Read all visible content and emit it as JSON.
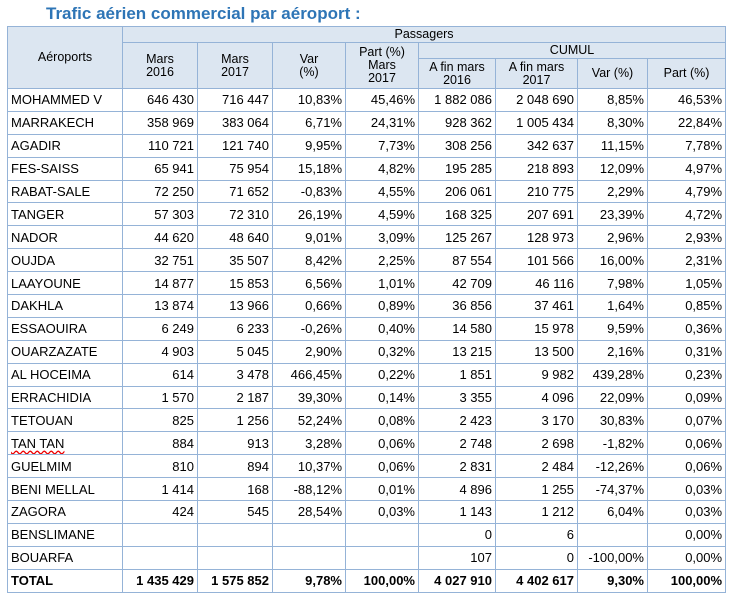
{
  "title": "Trafic aérien commercial par aéroport :",
  "table": {
    "header": {
      "airports": "Aéroports",
      "passengers": "Passagers",
      "cumul": "CUMUL",
      "columns": [
        "Mars\n2016",
        "Mars\n2017",
        "Var\n(%)",
        "Part (%)\nMars\n2017",
        "A fin mars\n2016",
        "A fin mars\n2017",
        "Var (%)",
        "Part (%)"
      ]
    },
    "rows": [
      [
        "MOHAMMED V",
        "646 430",
        "716 447",
        "10,83%",
        "45,46%",
        "1 882 086",
        "2 048 690",
        "8,85%",
        "46,53%"
      ],
      [
        "MARRAKECH",
        "358 969",
        "383 064",
        "6,71%",
        "24,31%",
        "928 362",
        "1 005 434",
        "8,30%",
        "22,84%"
      ],
      [
        "AGADIR",
        "110 721",
        "121 740",
        "9,95%",
        "7,73%",
        "308 256",
        "342 637",
        "11,15%",
        "7,78%"
      ],
      [
        "FES-SAISS",
        "65 941",
        "75 954",
        "15,18%",
        "4,82%",
        "195 285",
        "218 893",
        "12,09%",
        "4,97%"
      ],
      [
        "RABAT-SALE",
        "72 250",
        "71 652",
        "-0,83%",
        "4,55%",
        "206 061",
        "210 775",
        "2,29%",
        "4,79%"
      ],
      [
        "TANGER",
        "57 303",
        "72 310",
        "26,19%",
        "4,59%",
        "168 325",
        "207 691",
        "23,39%",
        "4,72%"
      ],
      [
        "NADOR",
        "44 620",
        "48 640",
        "9,01%",
        "3,09%",
        "125 267",
        "128 973",
        "2,96%",
        "2,93%"
      ],
      [
        "OUJDA",
        "32 751",
        "35 507",
        "8,42%",
        "2,25%",
        "87 554",
        "101 566",
        "16,00%",
        "2,31%"
      ],
      [
        "LAAYOUNE",
        "14 877",
        "15 853",
        "6,56%",
        "1,01%",
        "42 709",
        "46 116",
        "7,98%",
        "1,05%"
      ],
      [
        "DAKHLA",
        "13 874",
        "13 966",
        "0,66%",
        "0,89%",
        "36 856",
        "37 461",
        "1,64%",
        "0,85%"
      ],
      [
        "ESSAOUIRA",
        "6 249",
        "6 233",
        "-0,26%",
        "0,40%",
        "14 580",
        "15 978",
        "9,59%",
        "0,36%"
      ],
      [
        "OUARZAZATE",
        "4 903",
        "5 045",
        "2,90%",
        "0,32%",
        "13 215",
        "13 500",
        "2,16%",
        "0,31%"
      ],
      [
        "AL HOCEIMA",
        "614",
        "3 478",
        "466,45%",
        "0,22%",
        "1 851",
        "9 982",
        "439,28%",
        "0,23%"
      ],
      [
        "ERRACHIDIA",
        "1 570",
        "2 187",
        "39,30%",
        "0,14%",
        "3 355",
        "4 096",
        "22,09%",
        "0,09%"
      ],
      [
        "TETOUAN",
        "825",
        "1 256",
        "52,24%",
        "0,08%",
        "2 423",
        "3 170",
        "30,83%",
        "0,07%"
      ],
      [
        "TAN TAN",
        "884",
        "913",
        "3,28%",
        "0,06%",
        "2 748",
        "2 698",
        "-1,82%",
        "0,06%"
      ],
      [
        "GUELMIM",
        "810",
        "894",
        "10,37%",
        "0,06%",
        "2 831",
        "2 484",
        "-12,26%",
        "0,06%"
      ],
      [
        "BENI MELLAL",
        "1 414",
        "168",
        "-88,12%",
        "0,01%",
        "4 896",
        "1 255",
        "-74,37%",
        "0,03%"
      ],
      [
        "ZAGORA",
        "424",
        "545",
        "28,54%",
        "0,03%",
        "1 143",
        "1 212",
        "6,04%",
        "0,03%"
      ],
      [
        "BENSLIMANE",
        null,
        null,
        null,
        null,
        "0",
        "6",
        null,
        "0,00%"
      ],
      [
        "BOUARFA",
        null,
        null,
        null,
        null,
        "107",
        "0",
        "-100,00%",
        "0,00%"
      ],
      [
        "TOTAL",
        "1 435 429",
        "1 575 852",
        "9,78%",
        "100,00%",
        "4 027 910",
        "4 402 617",
        "9,30%",
        "100,00%"
      ]
    ]
  }
}
